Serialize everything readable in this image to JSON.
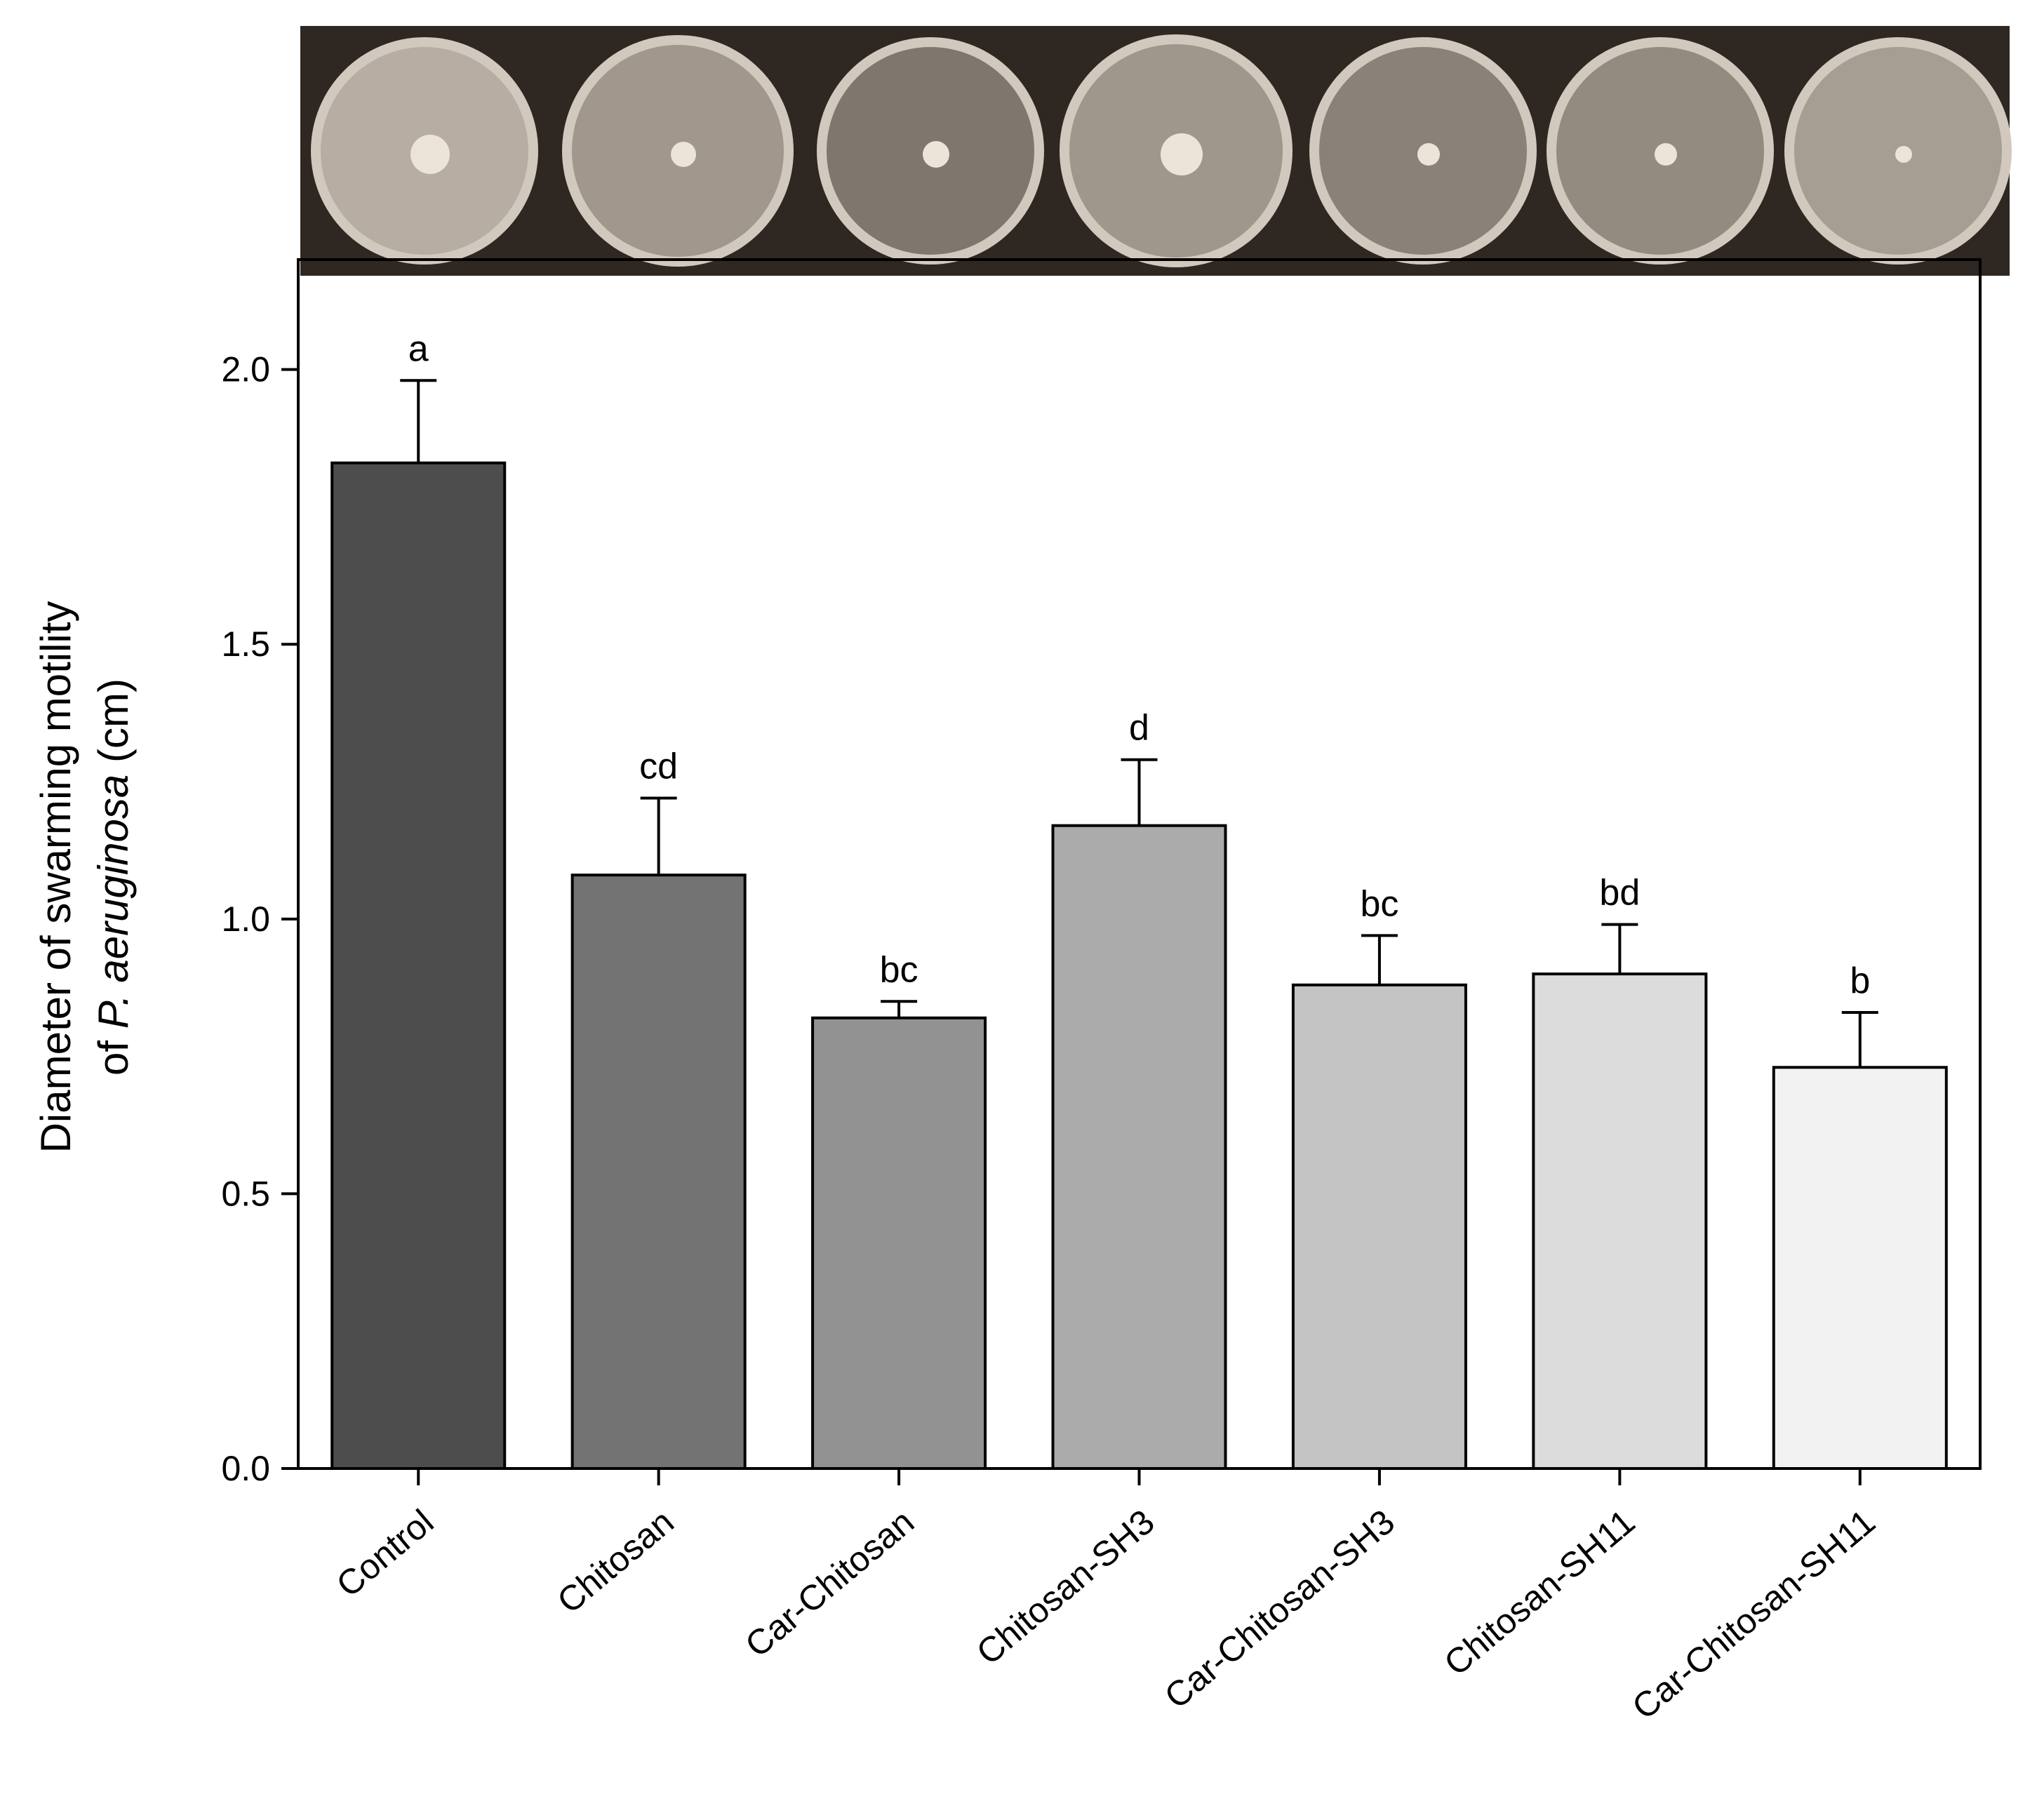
{
  "chart_data": {
    "type": "bar",
    "categories": [
      "Control",
      "Chitosan",
      "Car-Chitosan",
      "Chitosan-SH3",
      "Car-Chitosan-SH3",
      "Chitosan-SH11",
      "Car-Chitosan-SH11"
    ],
    "values": [
      1.83,
      1.08,
      0.82,
      1.17,
      0.88,
      0.9,
      0.73
    ],
    "errors": [
      0.15,
      0.14,
      0.03,
      0.12,
      0.09,
      0.09,
      0.1
    ],
    "significance_letters": [
      "a",
      "cd",
      "bc",
      "d",
      "bc",
      "bd",
      "b"
    ],
    "bar_colors": [
      "#4d4d4d",
      "#737373",
      "#929292",
      "#ababab",
      "#c4c4c4",
      "#dcdcdc",
      "#f2f2f2"
    ],
    "ylabel_line1": "Diameter of swarming motility",
    "ylabel_line2_prefix": "of ",
    "ylabel_line2_italic": "P. aeruginosa",
    "ylabel_line2_suffix": " (cm)",
    "ylim": [
      0,
      2.2
    ],
    "yticks": [
      "0.0",
      "0.5",
      "1.0",
      "1.5",
      "2.0"
    ],
    "ytick_values": [
      0,
      0.5,
      1.0,
      1.5,
      2.0
    ],
    "grid": false,
    "legend": "none"
  },
  "photo_strip": {
    "description_hidden": true,
    "plates": 7
  }
}
